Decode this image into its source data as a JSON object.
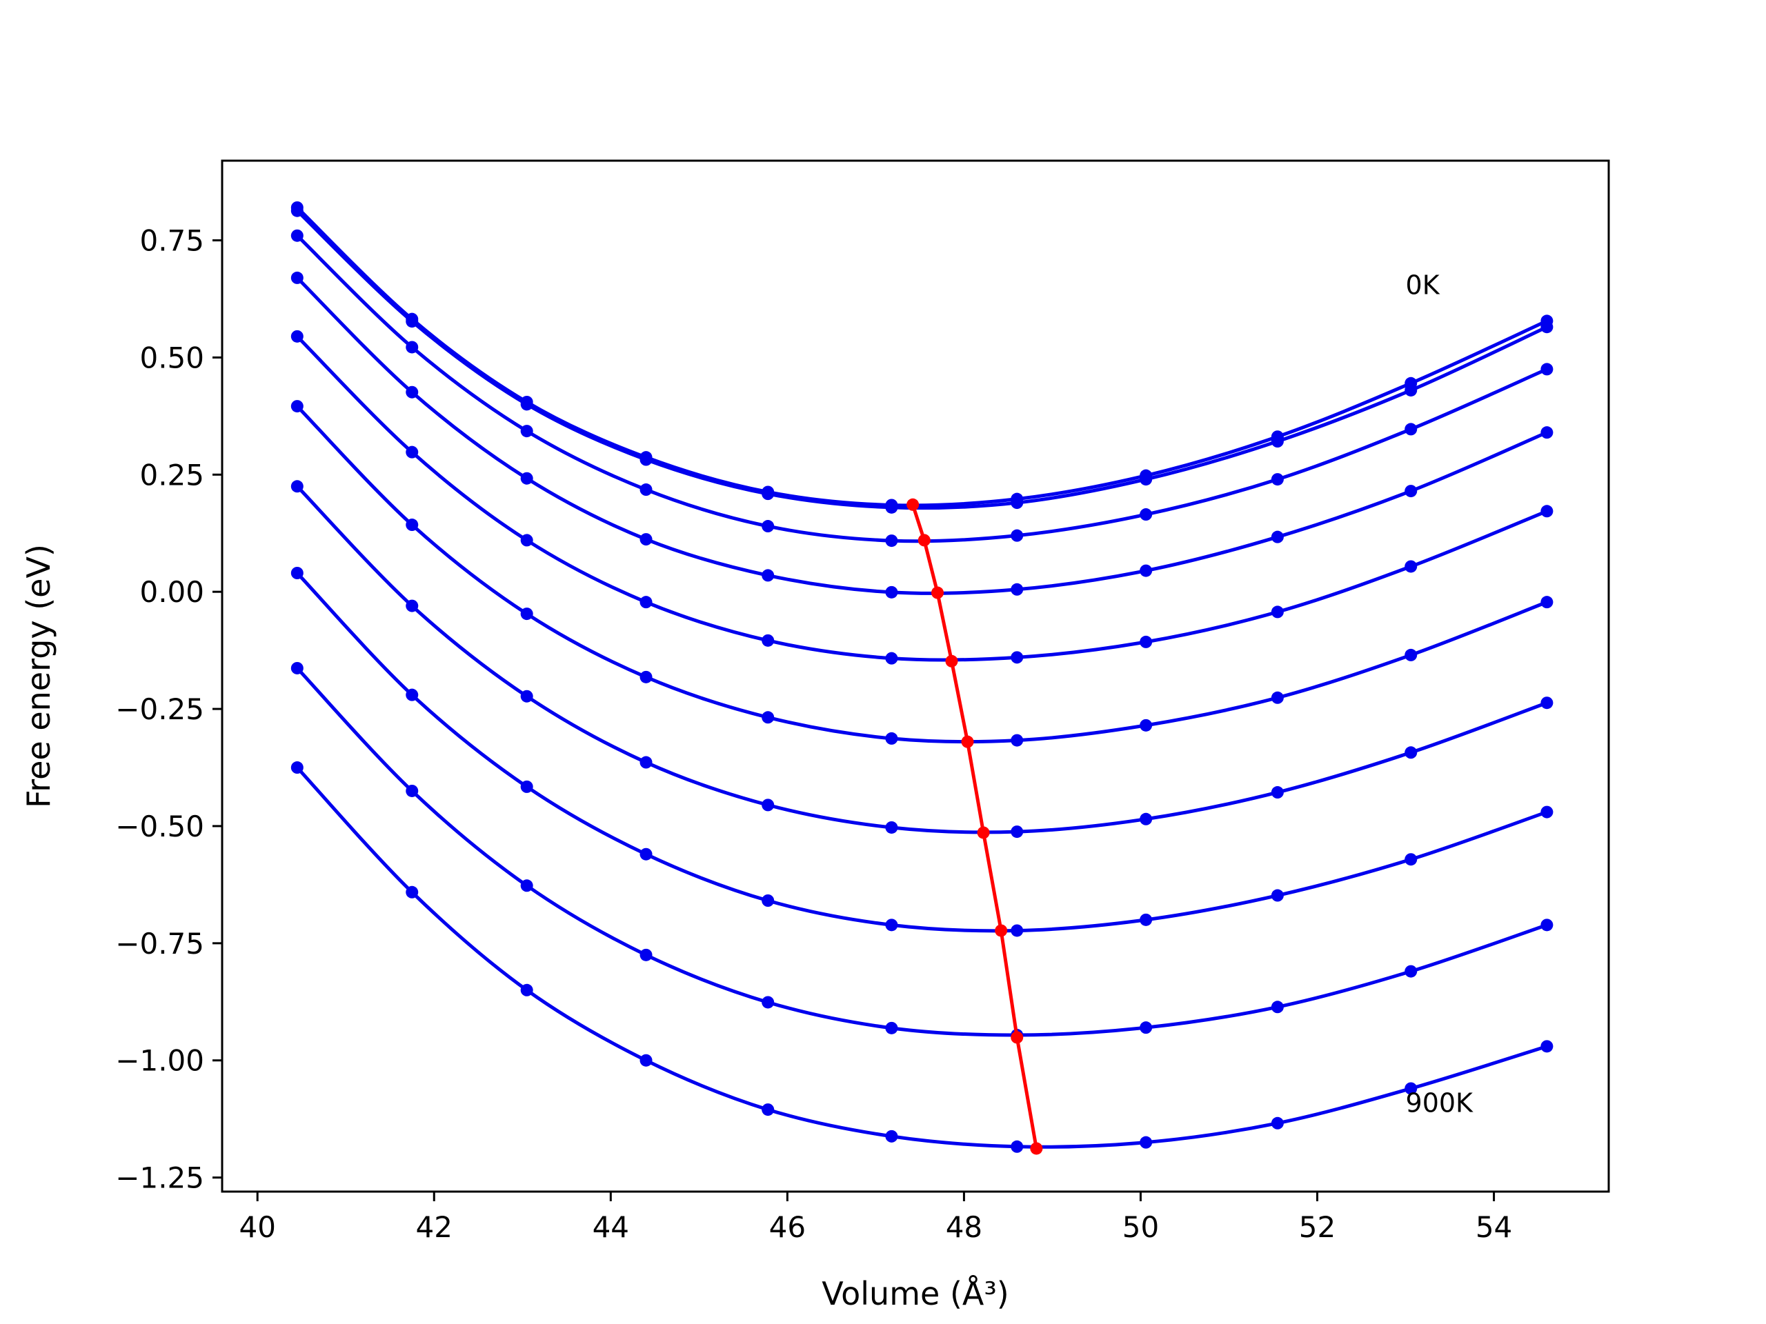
{
  "chart_data": {
    "type": "line",
    "xlabel": "Volume (Å³)",
    "ylabel": "Free energy (eV)",
    "xlim": [
      39.6,
      55.3
    ],
    "ylim": [
      -1.28,
      0.92
    ],
    "xticks": [
      40,
      42,
      44,
      46,
      48,
      50,
      52,
      54
    ],
    "xtick_labels": [
      "40",
      "42",
      "44",
      "46",
      "48",
      "50",
      "52",
      "54"
    ],
    "yticks": [
      0.75,
      0.5,
      0.25,
      0.0,
      -0.25,
      -0.5,
      -0.75,
      -1.0,
      -1.25
    ],
    "ytick_labels": [
      "0.75",
      "0.50",
      "0.25",
      "0.00",
      "−0.25",
      "−0.50",
      "−0.75",
      "−1.00",
      "−1.25"
    ],
    "grid": false,
    "colors": {
      "isotherms": "#0000ee",
      "minimum": "#ff0000",
      "frame": "#000000"
    },
    "annotations": [
      {
        "text": "0K",
        "x": 53.0,
        "y": 0.635
      },
      {
        "text": "900K",
        "x": 53.0,
        "y": -1.11
      }
    ],
    "x": [
      40.45,
      41.75,
      43.05,
      44.4,
      45.78,
      47.18,
      48.6,
      50.06,
      51.55,
      53.06,
      54.6
    ],
    "series": [
      {
        "values": [
          0.82,
          0.582,
          0.405,
          0.287,
          0.213,
          0.185,
          0.198,
          0.248,
          0.331,
          0.445,
          0.578
        ]
      },
      {
        "values": [
          0.813,
          0.577,
          0.4,
          0.282,
          0.209,
          0.18,
          0.19,
          0.24,
          0.321,
          0.43,
          0.565
        ]
      },
      {
        "values": [
          0.76,
          0.522,
          0.343,
          0.218,
          0.14,
          0.109,
          0.12,
          0.165,
          0.24,
          0.347,
          0.475
        ]
      },
      {
        "values": [
          0.67,
          0.426,
          0.242,
          0.112,
          0.035,
          -0.001,
          0.005,
          0.045,
          0.117,
          0.215,
          0.34
        ]
      },
      {
        "values": [
          0.545,
          0.298,
          0.11,
          -0.022,
          -0.104,
          -0.142,
          -0.14,
          -0.107,
          -0.043,
          0.054,
          0.172
        ]
      },
      {
        "values": [
          0.396,
          0.143,
          -0.047,
          -0.182,
          -0.268,
          -0.313,
          -0.317,
          -0.285,
          -0.226,
          -0.135,
          -0.022
        ]
      },
      {
        "values": [
          0.225,
          -0.03,
          -0.223,
          -0.364,
          -0.455,
          -0.503,
          -0.512,
          -0.485,
          -0.428,
          -0.343,
          -0.237
        ]
      },
      {
        "values": [
          0.04,
          -0.22,
          -0.416,
          -0.56,
          -0.659,
          -0.711,
          -0.723,
          -0.7,
          -0.648,
          -0.571,
          -0.47
        ]
      },
      {
        "values": [
          -0.163,
          -0.425,
          -0.627,
          -0.775,
          -0.876,
          -0.931,
          -0.946,
          -0.93,
          -0.886,
          -0.81,
          -0.711
        ]
      },
      {
        "values": [
          -0.375,
          -0.641,
          -0.85,
          -1.0,
          -1.105,
          -1.162,
          -1.184,
          -1.175,
          -1.134,
          -1.06,
          -0.97
        ]
      }
    ],
    "minimum_locus": {
      "x": [
        47.42,
        47.55,
        47.7,
        47.86,
        48.04,
        48.22,
        48.42,
        48.6,
        48.82
      ],
      "y": [
        0.186,
        0.11,
        -0.002,
        -0.148,
        -0.32,
        -0.514,
        -0.723,
        -0.951,
        -1.188
      ]
    }
  }
}
